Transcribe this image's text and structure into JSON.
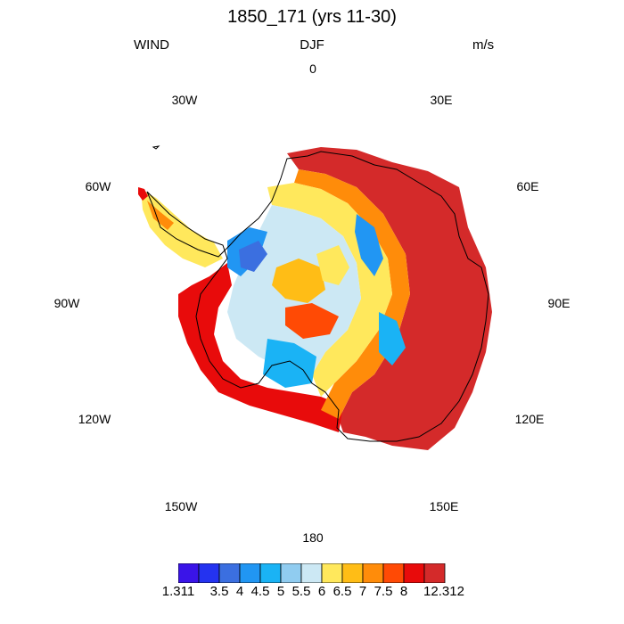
{
  "header": {
    "title": "1850_171 (yrs 11-30)",
    "left_label": "WIND",
    "center_label": "DJF",
    "right_label": "m/s"
  },
  "longitude_labels": {
    "n0": "0",
    "e30": "30E",
    "e60": "60E",
    "e90": "90E",
    "e120": "120E",
    "e150": "150E",
    "s180": "180",
    "w150": "150W",
    "w120": "120W",
    "w90": "90W",
    "w60": "60W",
    "w30": "30W"
  },
  "colorbar": {
    "colors": [
      "#3a14e8",
      "#2433f0",
      "#3b6fe0",
      "#2196f3",
      "#1ab3f5",
      "#90ccf0",
      "#cce8f4",
      "#ffe85c",
      "#ffbd16",
      "#ff8c0a",
      "#ff4a05",
      "#e80b0b",
      "#d42a2a"
    ],
    "labels": [
      "1.311",
      "3.5",
      "4",
      "4.5",
      "5",
      "5.5",
      "6",
      "6.5",
      "7",
      "7.5",
      "8",
      "12.312"
    ]
  }
}
